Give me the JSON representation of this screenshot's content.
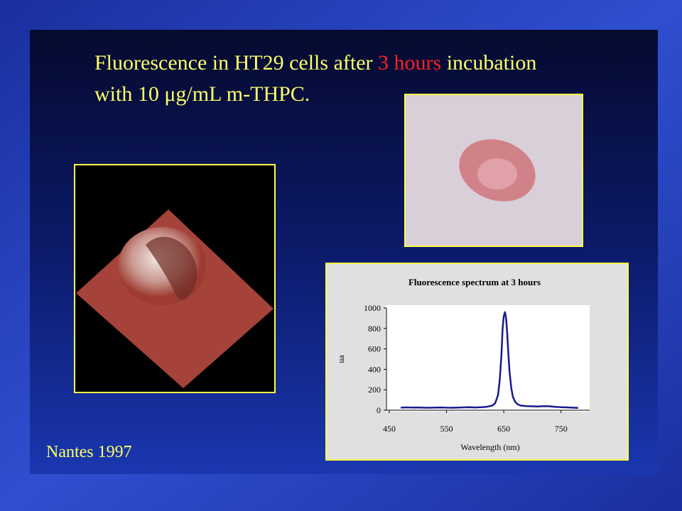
{
  "title": {
    "before": "Fluorescence in HT29 cells after ",
    "highlight": "3 hours",
    "after": " incubation",
    "line2": "with 10 μg/mL m-THPC."
  },
  "footer": "Nantes 1997",
  "chart_data": {
    "type": "line",
    "title": "Fluorescence spectrum at 3 hours",
    "x_label": "Wavelength (nm)",
    "y_label": "ua",
    "x": [
      470,
      480,
      490,
      500,
      510,
      520,
      530,
      540,
      550,
      560,
      570,
      580,
      590,
      600,
      610,
      620,
      630,
      635,
      640,
      643,
      646,
      648,
      650,
      652,
      654,
      656,
      658,
      660,
      663,
      666,
      670,
      675,
      680,
      690,
      700,
      710,
      720,
      730,
      740,
      750,
      760,
      770,
      780
    ],
    "values": [
      25,
      28,
      26,
      27,
      25,
      24,
      26,
      27,
      25,
      24,
      26,
      28,
      30,
      27,
      29,
      33,
      45,
      70,
      150,
      300,
      550,
      800,
      920,
      960,
      900,
      750,
      550,
      380,
      220,
      130,
      80,
      55,
      45,
      40,
      38,
      36,
      40,
      38,
      33,
      30,
      28,
      25,
      22
    ],
    "color": "#1a1a8c",
    "xlim": [
      450,
      800
    ],
    "xticks": [
      450,
      550,
      650,
      750
    ],
    "ylim": [
      0,
      1000
    ],
    "yticks": [
      0,
      200,
      400,
      600,
      800,
      1000
    ]
  }
}
